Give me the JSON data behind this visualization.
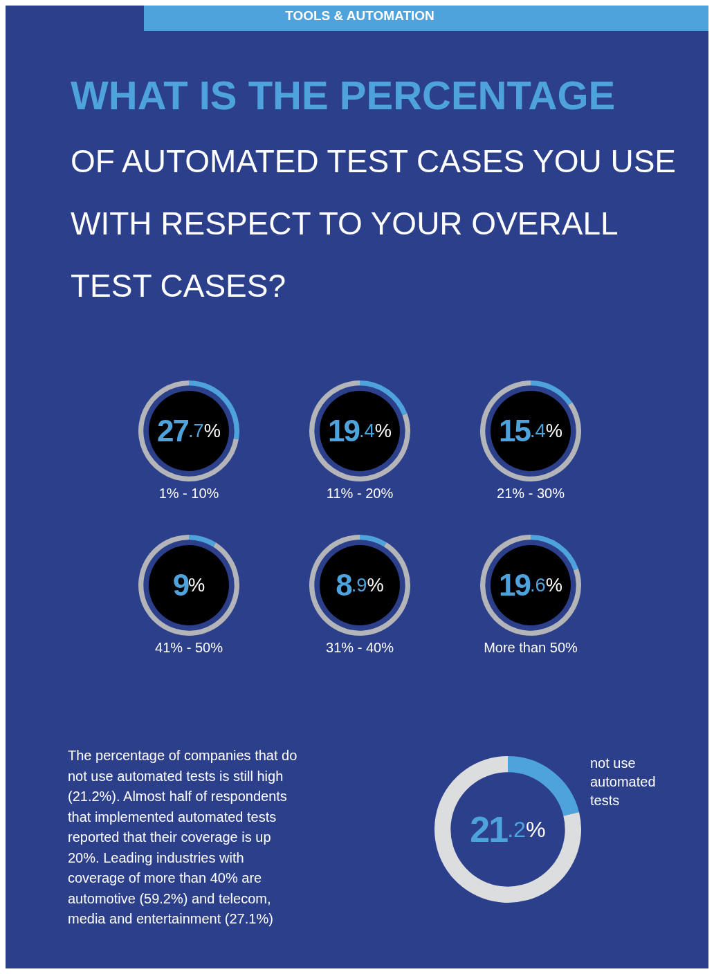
{
  "chart_data": [
    {
      "type": "other",
      "title": "WHAT IS THE PERCENTAGE",
      "subtitle": "OF AUTOMATED TEST CASES YOU USE WITH RESPECT TO YOUR OVERALL TEST CASES?",
      "annotations": [
        "TOOLS & AUTOMATION"
      ]
    },
    {
      "type": "donut",
      "title": "1% - 10%",
      "categories": [
        null,
        null
      ],
      "values": [
        27.7,
        72.3
      ],
      "colors": [
        "#4fa3dd",
        "#b3b5b9"
      ],
      "value_labels": [
        "27.7%",
        null
      ]
    },
    {
      "type": "donut",
      "title": "11% - 20%",
      "categories": [
        null,
        null
      ],
      "values": [
        19.4,
        80.6
      ],
      "colors": [
        "#4fa3dd",
        "#b3b5b9"
      ],
      "value_labels": [
        "19.4%",
        null
      ]
    },
    {
      "type": "donut",
      "title": "21% - 30%",
      "categories": [
        null,
        null
      ],
      "values": [
        15.4,
        84.6
      ],
      "colors": [
        "#4fa3dd",
        "#b3b5b9"
      ],
      "value_labels": [
        "15.4%",
        null
      ]
    },
    {
      "type": "donut",
      "title": "41% - 50%",
      "categories": [
        null,
        null
      ],
      "values": [
        9,
        91
      ],
      "colors": [
        "#4fa3dd",
        "#b3b5b9"
      ],
      "value_labels": [
        "9%",
        null
      ]
    },
    {
      "type": "donut",
      "title": "31% - 40%",
      "categories": [
        null,
        null
      ],
      "values": [
        8.9,
        91.1
      ],
      "colors": [
        "#4fa3dd",
        "#b3b5b9"
      ],
      "value_labels": [
        "8.9%",
        null
      ]
    },
    {
      "type": "donut",
      "title": "More than 50%",
      "categories": [
        null,
        null
      ],
      "values": [
        19.6,
        80.4
      ],
      "colors": [
        "#4fa3dd",
        "#b3b5b9"
      ],
      "value_labels": [
        "19.6%",
        null
      ]
    },
    {
      "type": "donut",
      "categories": [
        "not use automated tests",
        null
      ],
      "values": [
        21.2,
        78.8
      ],
      "colors": [
        "#4fa3dd",
        "#dcdddf"
      ],
      "value_labels": [
        "21.2%",
        null
      ],
      "annotations": [
        "The percentage of companies that do not use automated tests is still high (21.2%). Almost half of respondents that implemented automated tests reported that their coverage is up 20%. Leading industries with coverage of more than 40% are automotive (59.2%) and telecom, media and entertainment (27.1%)"
      ]
    }
  ]
}
